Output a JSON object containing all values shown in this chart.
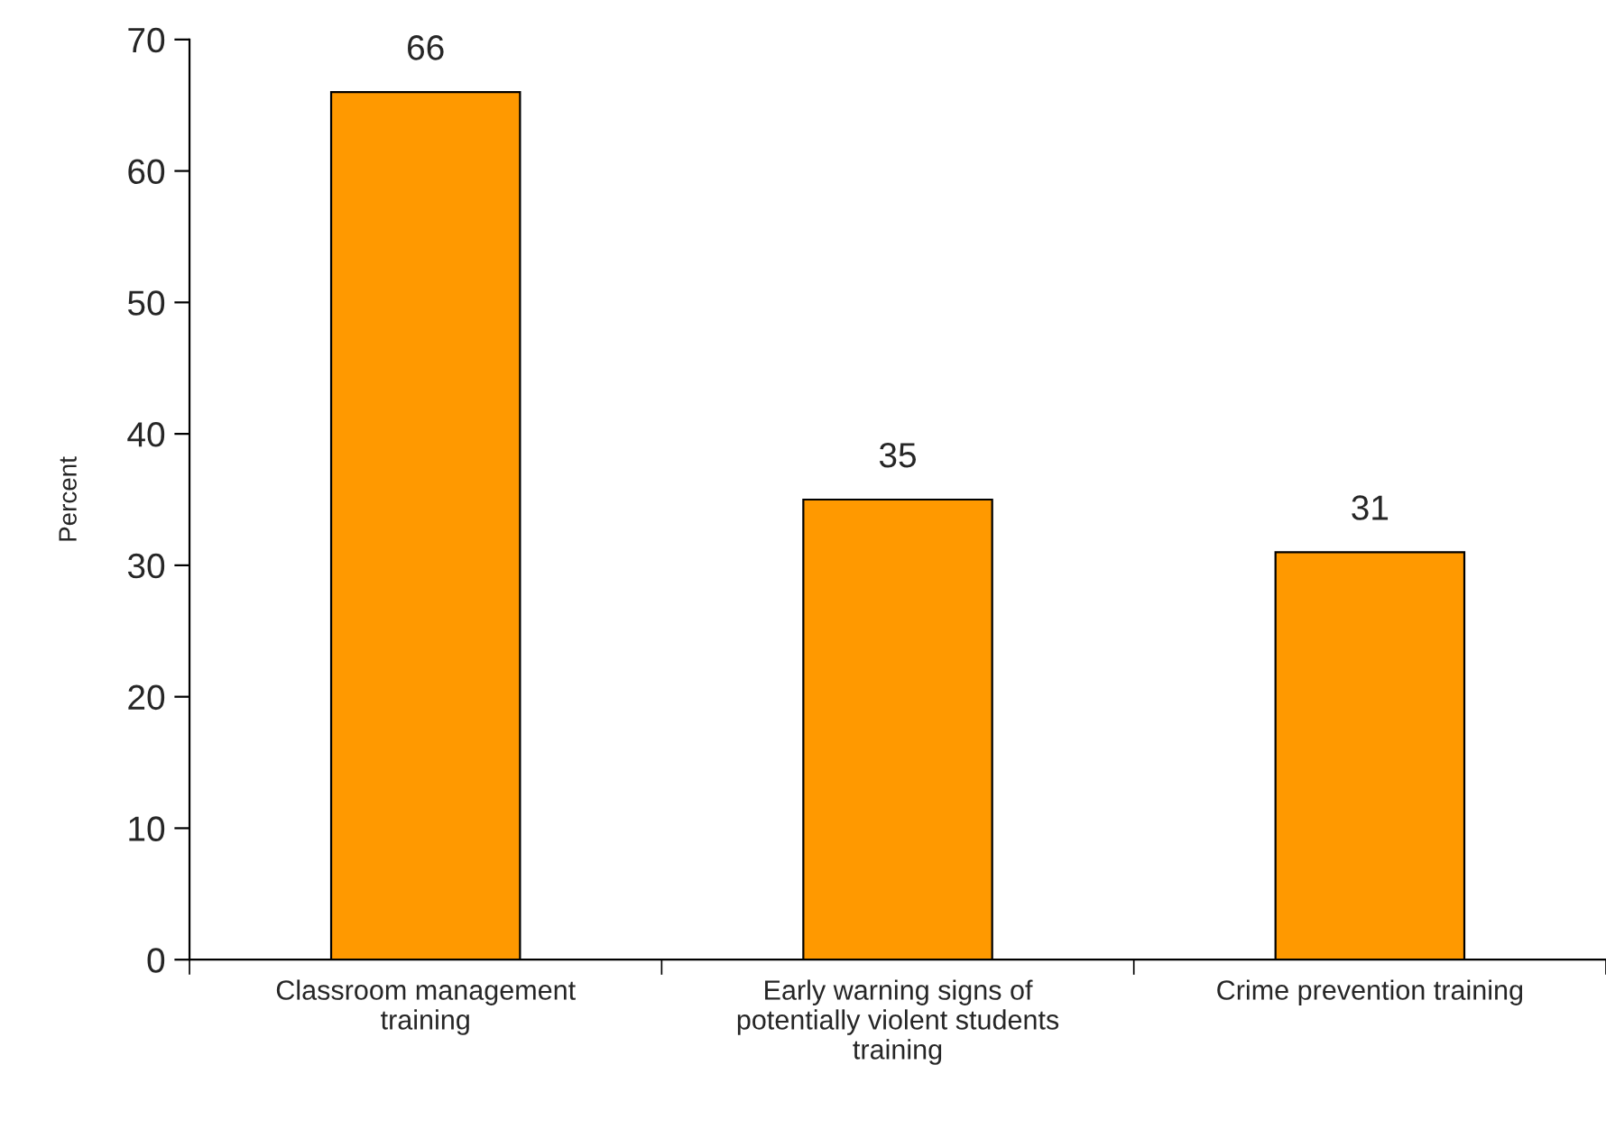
{
  "chart_data": {
    "type": "bar",
    "ylabel": "Percent",
    "categories": [
      "Classroom management\ntraining",
      "Early warning signs of\npotentially violent students\ntraining",
      "Crime prevention training"
    ],
    "values": [
      66,
      35,
      31
    ],
    "color": "#ff9900",
    "ylim": [
      0,
      70
    ],
    "yticks": [
      0,
      10,
      20,
      30,
      40,
      50,
      60,
      70
    ],
    "grid": false,
    "data_labels": true
  }
}
